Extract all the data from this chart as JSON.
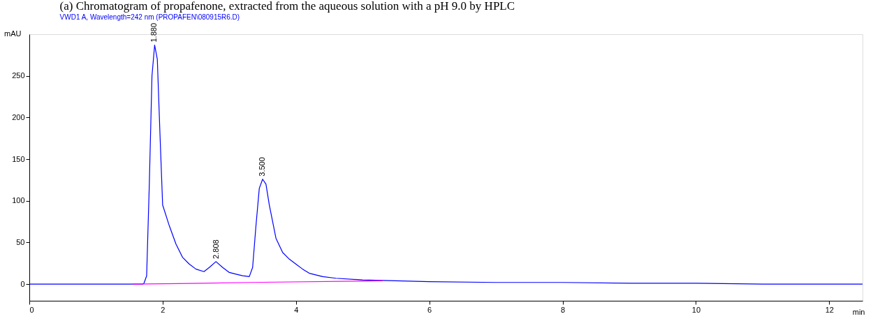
{
  "chart_data": {
    "type": "line",
    "title": "(a) Chromatogram of propafenone, extracted from the aqueous solution with a pH 9.0 by HPLC",
    "subtitle": "VWD1 A, Wavelength=242 nm (PROPAFEN\\080915R6.D)",
    "xlabel": "min",
    "ylabel": "mAU",
    "xlim": [
      0,
      12.5
    ],
    "xticks": [
      0,
      2,
      4,
      6,
      8,
      10,
      12
    ],
    "ylim": [
      -20,
      300
    ],
    "yticks": [
      0,
      50,
      100,
      150,
      200,
      250
    ],
    "grid": false,
    "marker": "none",
    "line_style": "solid",
    "series": [
      {
        "color": "#0000ff",
        "x": [
          0,
          1.5,
          1.7,
          1.72,
          1.76,
          1.8,
          1.84,
          1.88,
          1.92,
          1.96,
          2.0,
          2.1,
          2.2,
          2.3,
          2.4,
          2.5,
          2.62,
          2.7,
          2.8,
          2.9,
          3.0,
          3.1,
          3.2,
          3.3,
          3.35,
          3.4,
          3.45,
          3.5,
          3.55,
          3.6,
          3.7,
          3.8,
          3.9,
          4.0,
          4.1,
          4.2,
          4.4,
          4.6,
          5.0,
          5.5,
          6.0,
          7.0,
          8.0,
          9.0,
          10.0,
          11.0,
          12.5
        ],
        "values": [
          0,
          0,
          0,
          1,
          10,
          120,
          250,
          287,
          270,
          180,
          95,
          70,
          48,
          32,
          24,
          18,
          15,
          20,
          27,
          20,
          14,
          12,
          10,
          9,
          20,
          70,
          115,
          126,
          120,
          95,
          55,
          38,
          30,
          24,
          18,
          13,
          9,
          7,
          5,
          4,
          3,
          2,
          2,
          1,
          1,
          0,
          0
        ]
      },
      {
        "color": "#ff00ff",
        "x": [
          1.55,
          2.62,
          3.3,
          5.3
        ],
        "values": [
          0,
          1,
          2,
          4
        ]
      }
    ],
    "annotations": [
      {
        "text": "1.880",
        "x": 1.88,
        "y": 287
      },
      {
        "text": "2.808",
        "x": 2.808,
        "y": 27
      },
      {
        "text": "3.500",
        "x": 3.5,
        "y": 126
      }
    ]
  }
}
